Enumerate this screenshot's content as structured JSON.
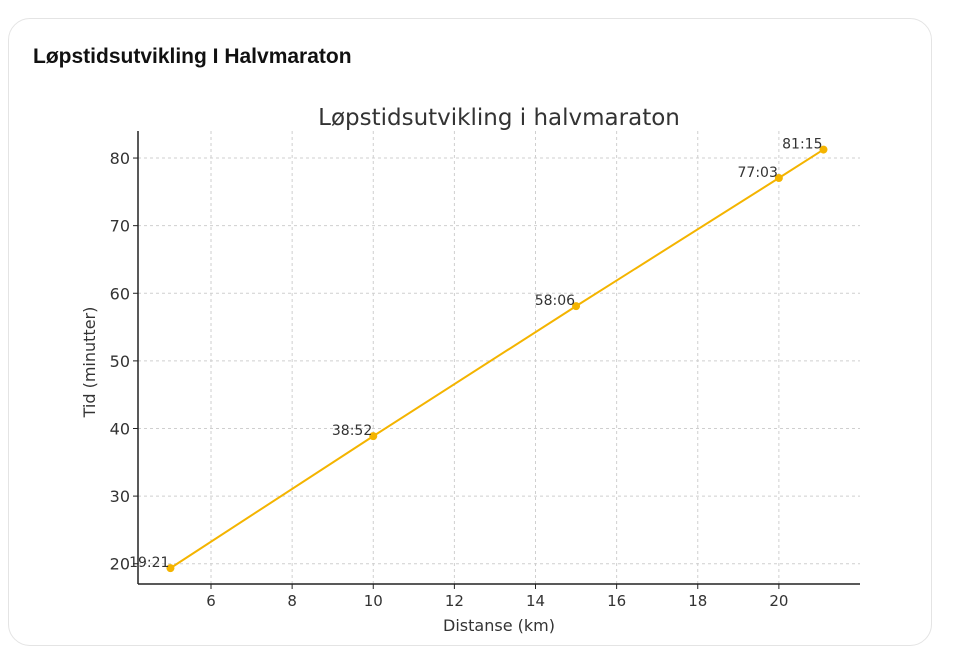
{
  "card": {
    "title": "Løpstidsutvikling I Halvmaraton"
  },
  "colors": {
    "series": "#f4b400",
    "grid": "#cfcfcf",
    "axis": "#222222",
    "text": "#333333"
  },
  "chart_data": {
    "type": "line",
    "title": "Løpstidsutvikling i halvmaraton",
    "xlabel": "Distanse (km)",
    "ylabel": "Tid (minutter)",
    "xlim": [
      4.2,
      22
    ],
    "ylim": [
      17,
      84
    ],
    "xticks": [
      6,
      8,
      10,
      12,
      14,
      16,
      18,
      20
    ],
    "yticks": [
      20,
      30,
      40,
      50,
      60,
      70,
      80
    ],
    "grid": true,
    "series": [
      {
        "x": [
          5,
          10,
          15,
          20,
          21.1
        ],
        "y": [
          19.35,
          38.87,
          58.1,
          77.05,
          81.25
        ],
        "labels": [
          "19:21",
          "38:52",
          "58:06",
          "77:03",
          "81:15"
        ]
      }
    ]
  }
}
